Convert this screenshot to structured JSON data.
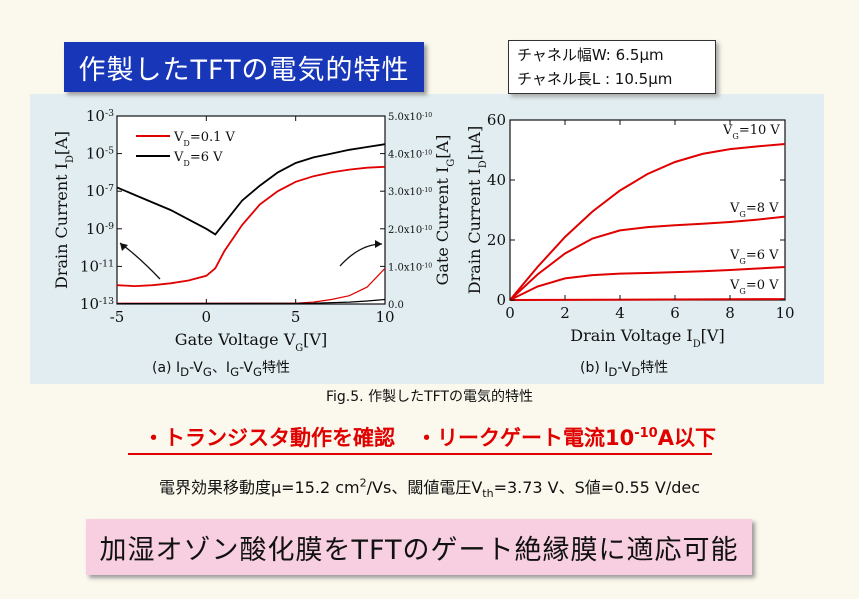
{
  "slide": {
    "title": "作製したTFTの電気的特性",
    "params": {
      "width": "チャネル幅W: 6.5μm",
      "length": "チャネル長L : 10.5μm"
    },
    "caption_a": {
      "main": "(a) I",
      "s1": "D",
      "t1": "-V",
      "s2": "G",
      "t2": "、I",
      "s3": "G",
      "t3": "-V",
      "s4": "G",
      "t4": "特性"
    },
    "caption_b": {
      "main": "(b) I",
      "s1": "D",
      "t1": "-V",
      "s2": "D",
      "t2": "特性"
    },
    "fig_caption": "Fig.5. 作製したTFTの電気的特性",
    "highlight": {
      "part1": "・トランジスタ動作を確認　・リークゲート電流10",
      "sup": "-10",
      "part2": "A以下"
    },
    "mobility": {
      "part1": "電界効果移動度μ=15.2 cm",
      "sup": "2",
      "part2": "/Vs、閾値電圧V",
      "sub": "th",
      "part3": "=3.73 V、S値=0.55 V/dec"
    },
    "conclusion": "加湿オゾン酸化膜をTFTのゲート絶縁膜に適応可能"
  },
  "chart_data": [
    {
      "type": "line",
      "xlabel": {
        "main": "Gate Voltage V",
        "sub": "G",
        "unit": "[V]"
      },
      "ylabel_left": {
        "main": "Drain Current I",
        "sub": "D",
        "unit": "[A]"
      },
      "ylabel_right": {
        "main": "Gate Current I",
        "sub": "G",
        "unit": "[A]"
      },
      "xlim": [
        -5,
        10
      ],
      "ylim_left_log": [
        -13,
        -3
      ],
      "ylim_right": [
        0,
        5e-10
      ],
      "x_ticks": [
        "-5",
        "0",
        "5",
        "10"
      ],
      "y_ticks_left": [
        {
          "v": -3,
          "base": "10",
          "exp": "-3"
        },
        {
          "v": -5,
          "base": "10",
          "exp": "-5"
        },
        {
          "v": -7,
          "base": "10",
          "exp": "-7"
        },
        {
          "v": -9,
          "base": "10",
          "exp": "-9"
        },
        {
          "v": -11,
          "base": "10",
          "exp": "-11"
        },
        {
          "v": -13,
          "base": "10",
          "exp": "-13"
        }
      ],
      "y_ticks_right": [
        {
          "v": 0,
          "label": "0.0"
        },
        {
          "v": 1e-10,
          "mant": "1.0x10",
          "exp": "-10"
        },
        {
          "v": 2e-10,
          "mant": "2.0x10",
          "exp": "-10"
        },
        {
          "v": 3e-10,
          "mant": "3.0x10",
          "exp": "-10"
        },
        {
          "v": 4e-10,
          "mant": "4.0x10",
          "exp": "-10"
        },
        {
          "v": 5e-10,
          "mant": "5.0x10",
          "exp": "-10"
        }
      ],
      "legend": [
        {
          "main": "V",
          "sub": "D",
          "rest": "=0.1 V",
          "color": "#e00000"
        },
        {
          "main": "V",
          "sub": "D",
          "rest": "=6 V",
          "color": "#000000"
        }
      ],
      "legend_placement": "top-left",
      "series_log": [
        {
          "color": "#e00000",
          "points": [
            [
              -5,
              -12.0
            ],
            [
              -4,
              -12.05
            ],
            [
              -3,
              -12.0
            ],
            [
              -2,
              -11.9
            ],
            [
              -1,
              -11.75
            ],
            [
              0,
              -11.5
            ],
            [
              0.5,
              -11.1
            ],
            [
              1,
              -10.2
            ],
            [
              2,
              -8.8
            ],
            [
              3,
              -7.7
            ],
            [
              4,
              -7.0
            ],
            [
              5,
              -6.5
            ],
            [
              6,
              -6.2
            ],
            [
              7,
              -6.0
            ],
            [
              8,
              -5.85
            ],
            [
              9,
              -5.75
            ],
            [
              10,
              -5.7
            ]
          ]
        },
        {
          "color": "#000000",
          "points": [
            [
              -5,
              -6.8
            ],
            [
              -4,
              -7.2
            ],
            [
              -3,
              -7.6
            ],
            [
              -2,
              -8.0
            ],
            [
              -1,
              -8.5
            ],
            [
              0,
              -9.0
            ],
            [
              0.5,
              -9.3
            ],
            [
              1,
              -8.7
            ],
            [
              2,
              -7.5
            ],
            [
              3,
              -6.7
            ],
            [
              4,
              -6.0
            ],
            [
              5,
              -5.5
            ],
            [
              6,
              -5.2
            ],
            [
              7,
              -5.0
            ],
            [
              8,
              -4.8
            ],
            [
              9,
              -4.65
            ],
            [
              10,
              -4.5
            ]
          ]
        }
      ],
      "series_gate_current": [
        {
          "color": "#e00000",
          "points": [
            [
              -5,
              2e-12
            ],
            [
              5,
              2e-12
            ],
            [
              6,
              5e-12
            ],
            [
              7,
              1.2e-11
            ],
            [
              8,
              2.2e-11
            ],
            [
              9,
              4.5e-11
            ],
            [
              10,
              9.5e-11
            ]
          ]
        },
        {
          "color": "#000000",
          "points": [
            [
              -5,
              1e-12
            ],
            [
              6,
              2e-12
            ],
            [
              8,
              5e-12
            ],
            [
              9,
              8e-12
            ],
            [
              10,
              1.2e-11
            ]
          ]
        }
      ]
    },
    {
      "type": "line",
      "xlabel": {
        "main": "Drain Voltage I",
        "sub": "D",
        "unit": "[V]"
      },
      "ylabel": {
        "main": "Drain Current I",
        "sub": "D",
        "unit": "[μA]"
      },
      "xlim": [
        0,
        10
      ],
      "ylim": [
        0,
        60
      ],
      "x_ticks": [
        "0",
        "2",
        "4",
        "6",
        "8",
        "10"
      ],
      "y_ticks": [
        "0",
        "20",
        "40",
        "60"
      ],
      "series": [
        {
          "label": {
            "main": "V",
            "sub": "G",
            "rest": "=10 V"
          },
          "points": [
            [
              0,
              0
            ],
            [
              1,
              11
            ],
            [
              2,
              21
            ],
            [
              3,
              29.5
            ],
            [
              4,
              36.5
            ],
            [
              5,
              42
            ],
            [
              6,
              46
            ],
            [
              7,
              48.7
            ],
            [
              8,
              50.3
            ],
            [
              9,
              51.2
            ],
            [
              10,
              52
            ]
          ]
        },
        {
          "label": {
            "main": "V",
            "sub": "G",
            "rest": "=8 V"
          },
          "points": [
            [
              0,
              0
            ],
            [
              1,
              8.5
            ],
            [
              2,
              15.5
            ],
            [
              3,
              20.5
            ],
            [
              4,
              23.2
            ],
            [
              5,
              24.3
            ],
            [
              6,
              24.9
            ],
            [
              7,
              25.4
            ],
            [
              8,
              26
            ],
            [
              9,
              26.8
            ],
            [
              10,
              27.8
            ]
          ]
        },
        {
          "label": {
            "main": "V",
            "sub": "G",
            "rest": "=6 V"
          },
          "points": [
            [
              0,
              0
            ],
            [
              1,
              4.5
            ],
            [
              2,
              7.2
            ],
            [
              3,
              8.3
            ],
            [
              4,
              8.8
            ],
            [
              5,
              9.0
            ],
            [
              6,
              9.3
            ],
            [
              7,
              9.6
            ],
            [
              8,
              10
            ],
            [
              9,
              10.5
            ],
            [
              10,
              11
            ]
          ]
        },
        {
          "label": {
            "main": "V",
            "sub": "G",
            "rest": "=0 V"
          },
          "points": [
            [
              0,
              0
            ],
            [
              10,
              0.3
            ]
          ]
        }
      ],
      "color": "#e00000"
    }
  ]
}
